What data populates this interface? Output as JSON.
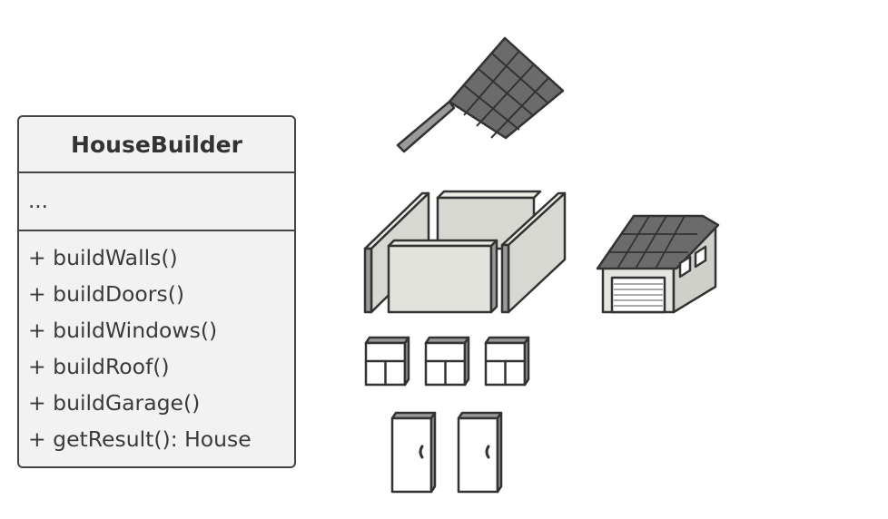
{
  "class_box": {
    "name": "HouseBuilder",
    "attributes": "...",
    "operations": [
      "+ buildWalls()",
      "+ buildDoors()",
      "+ buildWindows()",
      "+ buildRoof()",
      "+ buildGarage()",
      "+ getResult(): House"
    ]
  },
  "icons": [
    "roof-icon",
    "walls-icon",
    "garage-icon",
    "window-icon",
    "door-icon"
  ],
  "colors": {
    "outline": "#333333",
    "box_fill": "#f2f2f2",
    "roof_tile": "#6b6b6b",
    "wall_fill": "#d8d8d2",
    "wall_front": "#e3e3dd",
    "white": "#ffffff"
  }
}
